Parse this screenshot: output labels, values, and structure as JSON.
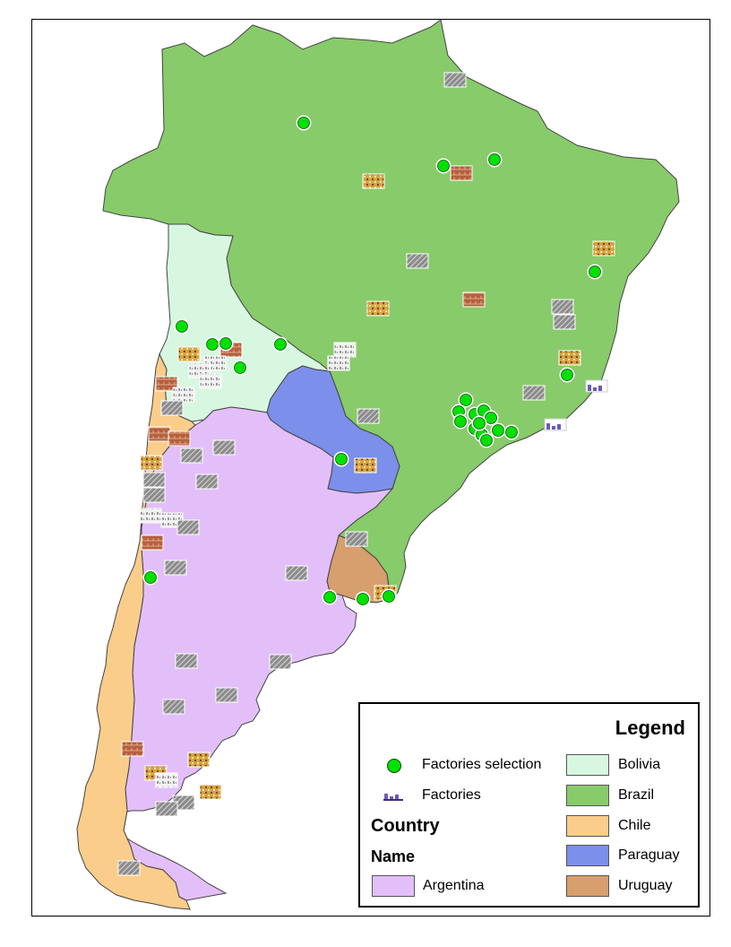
{
  "map": {
    "countries": [
      {
        "name": "Argentina",
        "color": "#e3bff9"
      },
      {
        "name": "Bolivia",
        "color": "#d8f7e1"
      },
      {
        "name": "Brazil",
        "color": "#88cb6a"
      },
      {
        "name": "Chile",
        "color": "#fbcd8a"
      },
      {
        "name": "Paraguay",
        "color": "#7c8fea"
      },
      {
        "name": "Uruguay",
        "color": "#d79e6e"
      }
    ],
    "selection_color": "#00e000"
  },
  "legend": {
    "title": "Legend",
    "factories_selection": "Factories selection",
    "factories": "Factories",
    "country_heading": "Country",
    "name_heading": "Name",
    "items": [
      "Argentina",
      "Bolivia",
      "Brazil",
      "Chile",
      "Paraguay",
      "Uruguay"
    ]
  }
}
